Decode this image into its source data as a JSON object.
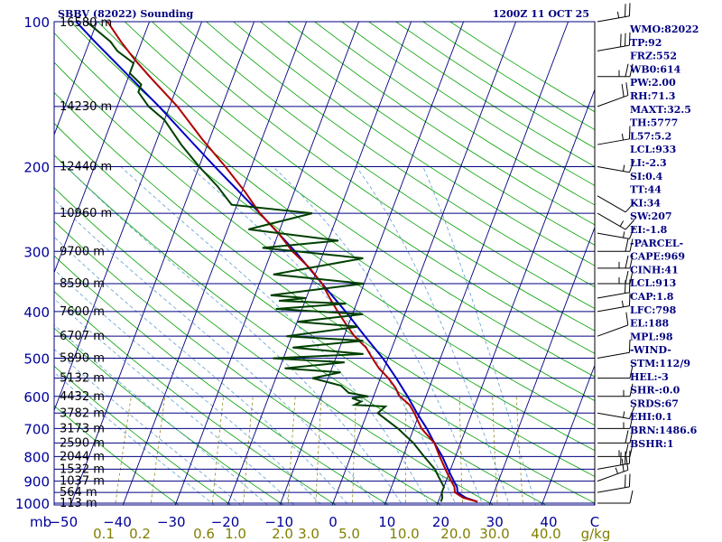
{
  "header": {
    "station": "SBBV (82022) Sounding",
    "time": "1200Z 11 OCT 25"
  },
  "colors": {
    "isobar": "#000080",
    "isotherm": "#00007f",
    "dry_adiabat": "#00a000",
    "moist_adiabat": "#5fa0d0",
    "mixing_ratio": "#7f7f00",
    "temperature": "#b00000",
    "dewpoint": "#004000",
    "parcel": "#0000c0",
    "index_text": "#000080",
    "wind_barb": "#000000"
  },
  "chart_data": {
    "type": "skew-t log-p sounding",
    "pressure_axis": {
      "unit": "mb",
      "range": [
        1000,
        100
      ],
      "ticks": [
        100,
        200,
        300,
        400,
        500,
        600,
        700,
        800,
        900,
        1000
      ]
    },
    "temperature_axis": {
      "ticks": [
        -50,
        -40,
        -30,
        -20,
        -10,
        0,
        10,
        20,
        30,
        40
      ]
    },
    "temperature_axis_tick_labels": [
      "−50",
      "−40",
      "−30",
      "−20",
      "−10",
      "0",
      "10",
      "20",
      "30",
      "40"
    ],
    "temperature_axis_right_label": "C",
    "mixing_ratio_axis": {
      "unit": "g/kg",
      "ticks": [
        0.1,
        0.2,
        0.6,
        1.0,
        2.0,
        3.0,
        5.0,
        10.0,
        20.0,
        30.0,
        40.0
      ],
      "tick_labels": [
        "0.1",
        "0.2",
        "0.6",
        "1.0",
        "2.0",
        "3.0",
        "5.0",
        "10.0",
        "20.0",
        "30.0",
        "40.0"
      ]
    },
    "mandatory_levels": [
      {
        "p": 100,
        "height": "16580 m"
      },
      {
        "p": 150,
        "height": "14230 m"
      },
      {
        "p": 200,
        "height": "12440 m"
      },
      {
        "p": 250,
        "height": "10960 m"
      },
      {
        "p": 300,
        "height": "9700 m"
      },
      {
        "p": 350,
        "height": "8590 m"
      },
      {
        "p": 400,
        "height": "7600 m"
      },
      {
        "p": 450,
        "height": "6707 m"
      },
      {
        "p": 500,
        "height": "5890 m"
      },
      {
        "p": 550,
        "height": "5132 m"
      },
      {
        "p": 600,
        "height": "4432 m"
      },
      {
        "p": 650,
        "height": "3782 m"
      },
      {
        "p": 700,
        "height": "3173 m"
      },
      {
        "p": 750,
        "height": "2590 m"
      },
      {
        "p": 800,
        "height": "2044 m"
      },
      {
        "p": 850,
        "height": "1532 m"
      },
      {
        "p": 900,
        "height": "1037 m"
      },
      {
        "p": 950,
        "height": "564 m"
      },
      {
        "p": 1000,
        "height": "113 m"
      }
    ],
    "temperature_profile": [
      [
        993,
        27.5
      ],
      [
        975,
        24.5
      ],
      [
        950,
        22.5
      ],
      [
        925,
        22
      ],
      [
        900,
        21
      ],
      [
        875,
        20
      ],
      [
        850,
        19
      ],
      [
        800,
        17
      ],
      [
        750,
        15
      ],
      [
        700,
        11.5
      ],
      [
        650,
        9
      ],
      [
        625,
        7.5
      ],
      [
        600,
        5
      ],
      [
        575,
        3.5
      ],
      [
        550,
        1.5
      ],
      [
        525,
        -1
      ],
      [
        500,
        -3
      ],
      [
        475,
        -5
      ],
      [
        450,
        -8
      ],
      [
        425,
        -10.5
      ],
      [
        400,
        -13
      ],
      [
        375,
        -15.5
      ],
      [
        350,
        -18
      ],
      [
        325,
        -21.5
      ],
      [
        300,
        -26
      ],
      [
        275,
        -30
      ],
      [
        250,
        -35
      ],
      [
        225,
        -39.5
      ],
      [
        200,
        -45
      ],
      [
        175,
        -51.5
      ],
      [
        150,
        -58.5
      ],
      [
        130,
        -66
      ],
      [
        120,
        -70
      ],
      [
        110,
        -74
      ],
      [
        100,
        -78
      ]
    ],
    "dewpoint_profile": [
      [
        993,
        20.5
      ],
      [
        975,
        20.5
      ],
      [
        950,
        20
      ],
      [
        925,
        20
      ],
      [
        900,
        19
      ],
      [
        875,
        18
      ],
      [
        850,
        17
      ],
      [
        800,
        14
      ],
      [
        750,
        11
      ],
      [
        700,
        7
      ],
      [
        650,
        2
      ],
      [
        630,
        3
      ],
      [
        625,
        -3
      ],
      [
        615,
        -2
      ],
      [
        605,
        -4
      ],
      [
        600,
        -1
      ],
      [
        590,
        -5
      ],
      [
        570,
        -7
      ],
      [
        550,
        -13
      ],
      [
        535,
        -8
      ],
      [
        525,
        -19
      ],
      [
        510,
        -8
      ],
      [
        500,
        -22
      ],
      [
        490,
        -5
      ],
      [
        475,
        -19
      ],
      [
        460,
        -6
      ],
      [
        450,
        -21
      ],
      [
        430,
        -8
      ],
      [
        420,
        -20
      ],
      [
        405,
        -8
      ],
      [
        395,
        -25
      ],
      [
        385,
        -12
      ],
      [
        380,
        -25
      ],
      [
        375,
        -20
      ],
      [
        370,
        -27
      ],
      [
        350,
        -10
      ],
      [
        335,
        -28
      ],
      [
        310,
        -12
      ],
      [
        295,
        -32
      ],
      [
        285,
        -18
      ],
      [
        270,
        -36
      ],
      [
        250,
        -25
      ],
      [
        240,
        -41
      ],
      [
        220,
        -45
      ],
      [
        200,
        -50
      ],
      [
        180,
        -55
      ],
      [
        160,
        -60
      ],
      [
        150,
        -64
      ],
      [
        140,
        -67
      ],
      [
        135,
        -67
      ],
      [
        128,
        -70
      ],
      [
        122,
        -70
      ],
      [
        115,
        -74
      ],
      [
        110,
        -76
      ],
      [
        100,
        -82
      ]
    ],
    "parcel_profile": [
      [
        993,
        27.5
      ],
      [
        975,
        25
      ],
      [
        950,
        23
      ],
      [
        925,
        22.5
      ],
      [
        913,
        22
      ],
      [
        875,
        20.5
      ],
      [
        850,
        19.5
      ],
      [
        800,
        17.5
      ],
      [
        750,
        15
      ],
      [
        700,
        12.5
      ],
      [
        650,
        9.5
      ],
      [
        600,
        6.5
      ],
      [
        550,
        3
      ],
      [
        500,
        -1
      ],
      [
        450,
        -6
      ],
      [
        400,
        -11.5
      ],
      [
        350,
        -18
      ],
      [
        300,
        -25.5
      ],
      [
        250,
        -35
      ],
      [
        200,
        -47
      ],
      [
        175,
        -54
      ],
      [
        150,
        -62
      ],
      [
        125,
        -72
      ],
      [
        110,
        -79
      ],
      [
        100,
        -84
      ]
    ],
    "wind_barbs": [
      {
        "p": 100,
        "dir": 80,
        "kt": 25
      },
      {
        "p": 115,
        "dir": 80,
        "kt": 30
      },
      {
        "p": 130,
        "dir": 90,
        "kt": 25
      },
      {
        "p": 150,
        "dir": 70,
        "kt": 20
      },
      {
        "p": 180,
        "dir": 80,
        "kt": 15
      },
      {
        "p": 200,
        "dir": 100,
        "kt": 15
      },
      {
        "p": 230,
        "dir": 120,
        "kt": 10
      },
      {
        "p": 250,
        "dir": 120,
        "kt": 15
      },
      {
        "p": 275,
        "dir": 100,
        "kt": 15
      },
      {
        "p": 300,
        "dir": 90,
        "kt": 20
      },
      {
        "p": 325,
        "dir": 90,
        "kt": 25
      },
      {
        "p": 350,
        "dir": 90,
        "kt": 25
      },
      {
        "p": 375,
        "dir": 80,
        "kt": 20
      },
      {
        "p": 400,
        "dir": 80,
        "kt": 15
      },
      {
        "p": 450,
        "dir": 70,
        "kt": 10
      },
      {
        "p": 500,
        "dir": 80,
        "kt": 10
      },
      {
        "p": 550,
        "dir": 90,
        "kt": 10
      },
      {
        "p": 600,
        "dir": 90,
        "kt": 15
      },
      {
        "p": 650,
        "dir": 100,
        "kt": 15
      },
      {
        "p": 700,
        "dir": 90,
        "kt": 15
      },
      {
        "p": 750,
        "dir": 90,
        "kt": 20
      },
      {
        "p": 800,
        "dir": 90,
        "kt": 25
      },
      {
        "p": 850,
        "dir": 80,
        "kt": 30
      },
      {
        "p": 900,
        "dir": 70,
        "kt": 25
      },
      {
        "p": 950,
        "dir": 80,
        "kt": 20
      },
      {
        "p": 1000,
        "dir": 90,
        "kt": 10
      }
    ]
  },
  "indices": [
    "WMO:82022",
    "TP:92",
    "FRZ:552",
    "WB0:614",
    "PW:2.00",
    "RH:71.3",
    "MAXT:32.5",
    "TH:5777",
    "L57:5.2",
    "LCL:933",
    "LI:-2.3",
    "SI:0.4",
    "TT:44",
    "KI:34",
    "SW:207",
    "EI:-1.8",
    "-PARCEL-",
    "CAPE:969",
    "CINH:41",
    "LCL:913",
    "CAP:1.8",
    "LFC:798",
    "EL:188",
    "MPL:98",
    "-WIND-",
    "STM:112/9",
    "HEL:-3",
    "SHR-:0.0",
    "SRDS:67",
    "EHI:0.1",
    "BRN:1486.6",
    "BSHR:1"
  ]
}
